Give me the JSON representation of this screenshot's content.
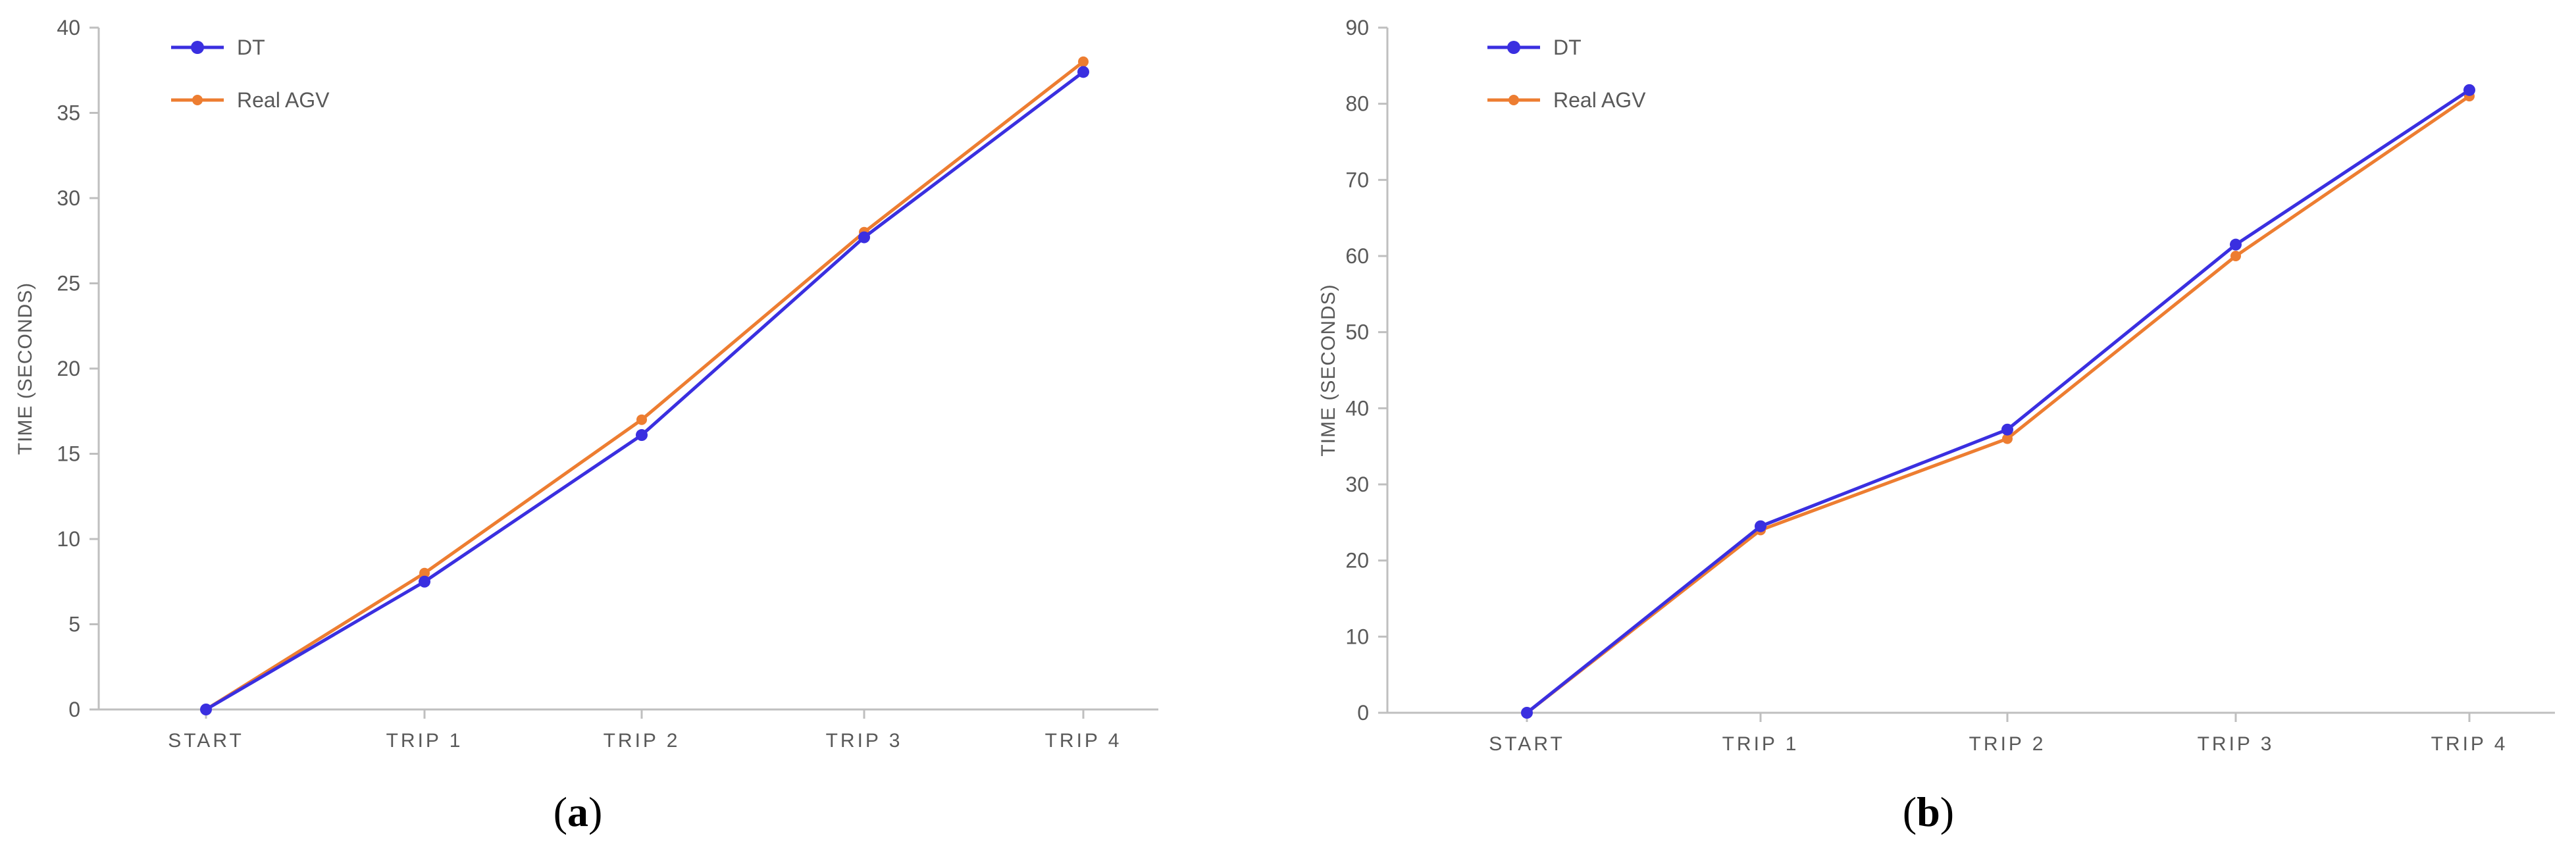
{
  "chart_data": [
    {
      "type": "line",
      "panel_label_parts": [
        "(",
        "a",
        ")"
      ],
      "title": "",
      "xlabel": "",
      "ylabel": "TIME (SECONDS)",
      "categories": [
        "START",
        "TRIP 1",
        "TRIP 2",
        "TRIP 3",
        "TRIP 4"
      ],
      "ylim": [
        0,
        40
      ],
      "yticks": [
        "0",
        "5",
        "10",
        "15",
        "20",
        "25",
        "30",
        "35",
        "40"
      ],
      "grid": false,
      "legend_position": "top-left",
      "series": [
        {
          "name": "DT",
          "color": "#3a2fe0",
          "values": [
            0,
            7.5,
            16.1,
            27.7,
            37.4
          ]
        },
        {
          "name": "Real AGV",
          "color": "#ed7d31",
          "values": [
            0,
            8.0,
            17.0,
            28.0,
            38.0
          ]
        }
      ]
    },
    {
      "type": "line",
      "panel_label_parts": [
        "(",
        "b",
        ")"
      ],
      "title": "",
      "xlabel": "",
      "ylabel": "TIME (SECONDS)",
      "categories": [
        "START",
        "TRIP 1",
        "TRIP 2",
        "TRIP 3",
        "TRIP 4"
      ],
      "ylim": [
        0,
        90
      ],
      "yticks": [
        "0",
        "10",
        "20",
        "30",
        "40",
        "50",
        "60",
        "70",
        "80",
        "90"
      ],
      "grid": false,
      "legend_position": "top-left",
      "series": [
        {
          "name": "DT",
          "color": "#3a2fe0",
          "values": [
            0,
            24.5,
            37.2,
            61.5,
            81.8
          ]
        },
        {
          "name": "Real AGV",
          "color": "#ed7d31",
          "values": [
            0,
            24.0,
            36.0,
            60.0,
            81.0
          ]
        }
      ]
    }
  ]
}
